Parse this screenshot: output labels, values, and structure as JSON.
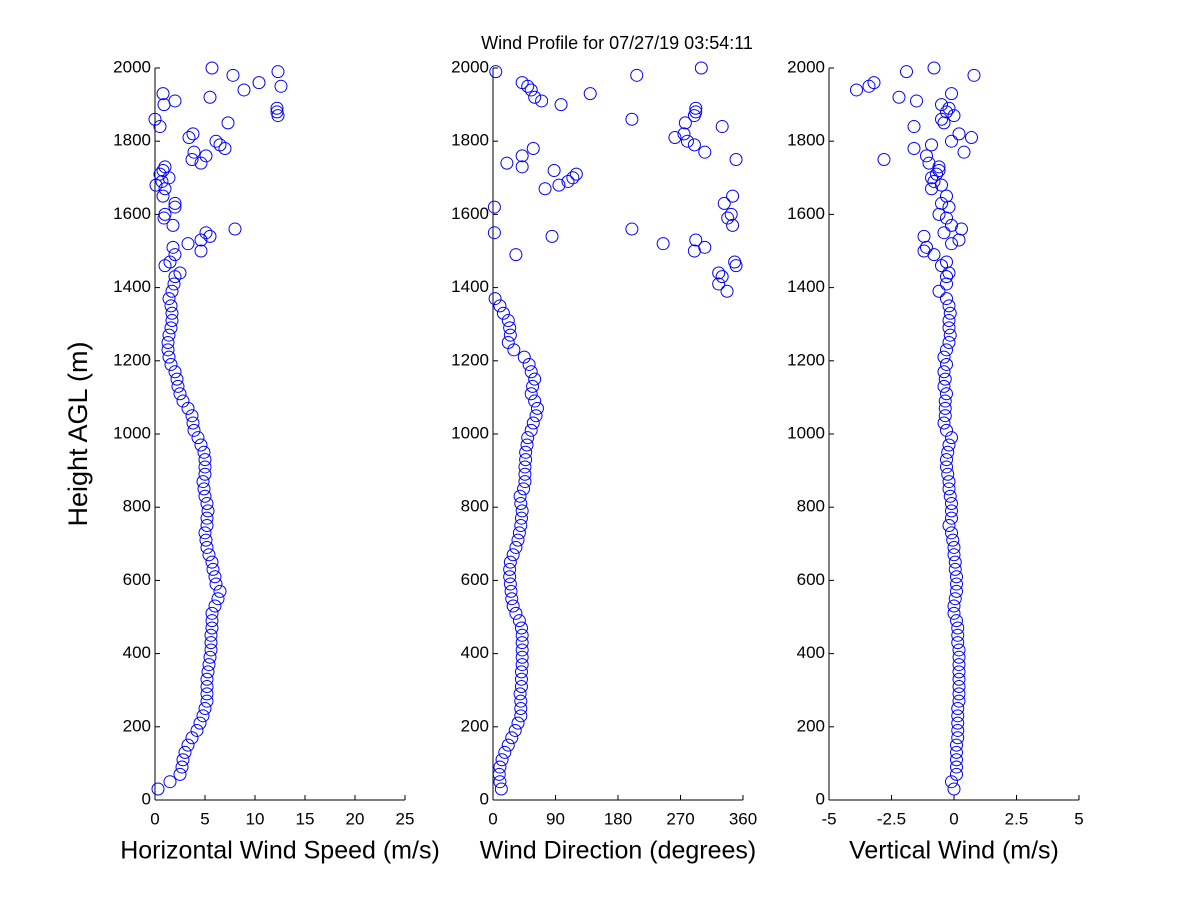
{
  "chart_data": [
    {
      "type": "scatter",
      "title": "Wind Profile for  07/27/19 03:54:11",
      "ylabel": "Height AGL (m)",
      "xlabel": "Horizontal Wind Speed (m/s)",
      "color": "#0000ff",
      "xlim": [
        0,
        25
      ],
      "xticks": [
        0,
        5,
        10,
        15,
        20,
        25
      ],
      "ylim": [
        0,
        2000
      ],
      "yticks": [
        0,
        200,
        400,
        600,
        800,
        1000,
        1200,
        1400,
        1600,
        1800,
        2000
      ],
      "x": [
        0.3,
        1.5,
        2.5,
        2.7,
        2.8,
        3.0,
        3.3,
        3.7,
        4.2,
        4.5,
        4.8,
        5.0,
        5.2,
        5.2,
        5.2,
        5.2,
        5.3,
        5.4,
        5.5,
        5.6,
        5.6,
        5.6,
        5.7,
        5.7,
        5.7,
        6.0,
        6.3,
        6.5,
        6.1,
        6.0,
        5.8,
        5.7,
        5.4,
        5.2,
        5.1,
        5.0,
        5.2,
        5.2,
        5.3,
        5.2,
        5.0,
        4.9,
        4.8,
        5.0,
        5.0,
        5.0,
        4.9,
        4.6,
        4.3,
        3.9,
        3.8,
        3.7,
        3.3,
        2.8,
        2.5,
        2.3,
        2.2,
        2.0,
        1.6,
        1.4,
        1.3,
        1.3,
        1.4,
        1.6,
        1.7,
        1.7,
        1.6,
        1.4,
        1.7,
        1.9,
        2.0,
        2.5,
        1.0,
        1.5,
        2.0,
        4.6,
        1.8,
        3.3,
        4.6,
        5.5,
        5.1,
        8.0,
        1.8,
        0.9,
        1.0,
        2.0,
        2.0,
        0.8,
        1.0,
        0.1,
        0.7,
        1.4,
        0.5,
        0.8,
        1.0,
        4.6,
        3.7,
        5.1,
        3.9,
        7.0,
        6.5,
        6.1,
        3.4,
        3.8,
        0.5,
        7.3,
        0.0,
        12.3,
        12.2,
        12.2,
        0.9,
        2.0,
        5.5,
        0.8,
        8.9,
        12.6,
        10.4,
        7.8,
        12.3,
        5.7
      ],
      "values": [
        30,
        50,
        70,
        90,
        110,
        130,
        150,
        170,
        190,
        210,
        230,
        250,
        270,
        290,
        310,
        330,
        350,
        370,
        390,
        410,
        430,
        450,
        470,
        490,
        510,
        530,
        550,
        570,
        590,
        610,
        630,
        650,
        670,
        690,
        710,
        730,
        750,
        770,
        790,
        810,
        830,
        850,
        870,
        890,
        910,
        930,
        950,
        970,
        990,
        1010,
        1030,
        1050,
        1070,
        1090,
        1110,
        1130,
        1150,
        1170,
        1190,
        1210,
        1230,
        1250,
        1270,
        1290,
        1310,
        1330,
        1350,
        1370,
        1390,
        1410,
        1430,
        1440,
        1460,
        1470,
        1490,
        1500,
        1510,
        1520,
        1530,
        1540,
        1550,
        1560,
        1570,
        1590,
        1600,
        1620,
        1630,
        1650,
        1670,
        1680,
        1690,
        1700,
        1710,
        1720,
        1730,
        1740,
        1750,
        1760,
        1770,
        1780,
        1790,
        1800,
        1810,
        1820,
        1840,
        1850,
        1860,
        1870,
        1880,
        1890,
        1900,
        1910,
        1920,
        1930,
        1940,
        1950,
        1960,
        1980,
        1990,
        2000
      ]
    },
    {
      "type": "scatter",
      "xlabel": "Wind Direction (degrees)",
      "color": "#0000ff",
      "xlim": [
        0,
        360
      ],
      "xticks": [
        0,
        90,
        180,
        270,
        360
      ],
      "ylim": [
        0,
        2000
      ],
      "yticks": [
        0,
        200,
        400,
        600,
        800,
        1000,
        1200,
        1400,
        1600,
        1800,
        2000
      ],
      "x": [
        12,
        10,
        9,
        10,
        13,
        17,
        22,
        27,
        32,
        36,
        40,
        40,
        40,
        39,
        41,
        41,
        41,
        42,
        42,
        42,
        42,
        42,
        41,
        38,
        33,
        29,
        27,
        26,
        25,
        24,
        24,
        25,
        29,
        33,
        36,
        38,
        40,
        41,
        42,
        40,
        39,
        44,
        46,
        46,
        46,
        47,
        47,
        49,
        50,
        55,
        58,
        62,
        64,
        60,
        55,
        57,
        60,
        55,
        52,
        45,
        30,
        22,
        25,
        24,
        22,
        15,
        10,
        3,
        337,
        325,
        330,
        325,
        350,
        348,
        33,
        290,
        305,
        245,
        292,
        85,
        2,
        200,
        345,
        338,
        343,
        2,
        333,
        345,
        75,
        95,
        108,
        115,
        120,
        88,
        42,
        20,
        350,
        42,
        305,
        58,
        290,
        280,
        262,
        275,
        330,
        277,
        200,
        290,
        292,
        292,
        98,
        70,
        60,
        140,
        55,
        50,
        42,
        207,
        4,
        300
      ],
      "values": [
        30,
        50,
        70,
        90,
        110,
        130,
        150,
        170,
        190,
        210,
        230,
        250,
        270,
        290,
        310,
        330,
        350,
        370,
        390,
        410,
        430,
        450,
        470,
        490,
        510,
        530,
        550,
        570,
        590,
        610,
        630,
        650,
        670,
        690,
        710,
        730,
        750,
        770,
        790,
        810,
        830,
        850,
        870,
        890,
        910,
        930,
        950,
        970,
        990,
        1010,
        1030,
        1050,
        1070,
        1090,
        1110,
        1130,
        1150,
        1170,
        1190,
        1210,
        1230,
        1250,
        1270,
        1290,
        1310,
        1330,
        1350,
        1370,
        1390,
        1410,
        1430,
        1440,
        1460,
        1470,
        1490,
        1500,
        1510,
        1520,
        1530,
        1540,
        1550,
        1560,
        1570,
        1590,
        1600,
        1620,
        1630,
        1650,
        1670,
        1680,
        1690,
        1700,
        1710,
        1720,
        1730,
        1740,
        1750,
        1760,
        1770,
        1780,
        1790,
        1800,
        1810,
        1820,
        1840,
        1850,
        1860,
        1870,
        1880,
        1890,
        1900,
        1910,
        1920,
        1930,
        1940,
        1950,
        1960,
        1980,
        1990,
        2000
      ]
    },
    {
      "type": "scatter",
      "xlabel": "Vertical Wind (m/s)",
      "color": "#0000ff",
      "xlim": [
        -5,
        5
      ],
      "xticks": [
        -5,
        -2.5,
        0,
        2.5,
        5
      ],
      "ylim": [
        0,
        2000
      ],
      "yticks": [
        0,
        200,
        400,
        600,
        800,
        1000,
        1200,
        1400,
        1600,
        1800,
        2000
      ],
      "x": [
        0,
        -0.1,
        0.1,
        0.1,
        0.1,
        0.1,
        0.1,
        0.15,
        0.15,
        0.15,
        0.15,
        0.15,
        0.2,
        0.2,
        0.2,
        0.2,
        0.2,
        0.2,
        0.2,
        0.2,
        0.15,
        0.15,
        0.15,
        0.1,
        0,
        0,
        0.05,
        0.1,
        0.1,
        0.1,
        0.05,
        0.05,
        0,
        0,
        -0.05,
        -0.1,
        -0.2,
        -0.1,
        -0.1,
        -0.1,
        -0.15,
        -0.2,
        -0.2,
        -0.25,
        -0.3,
        -0.3,
        -0.25,
        -0.2,
        -0.1,
        -0.3,
        -0.4,
        -0.35,
        -0.35,
        -0.35,
        -0.3,
        -0.4,
        -0.35,
        -0.4,
        -0.3,
        -0.4,
        -0.3,
        -0.2,
        -0.15,
        -0.2,
        -0.2,
        -0.15,
        -0.2,
        -0.3,
        -0.6,
        -0.3,
        -0.3,
        -0.2,
        -0.5,
        -0.3,
        -0.8,
        -1.2,
        -1.1,
        -0.1,
        0.2,
        -1.2,
        -0.4,
        0.3,
        -0.1,
        -0.3,
        -0.6,
        -0.2,
        -0.5,
        -0.3,
        -0.9,
        -0.5,
        -0.8,
        -0.9,
        -0.7,
        -0.6,
        -0.6,
        -1.0,
        -2.8,
        -1.1,
        0.4,
        -1.6,
        -0.9,
        -0.1,
        0.7,
        0.2,
        -1.6,
        -0.4,
        -0.5,
        0.0,
        -0.3,
        -0.2,
        -0.5,
        -1.5,
        -2.2,
        -0.1,
        -3.9,
        -3.4,
        -3.2,
        0.8,
        -1.9,
        -0.8
      ],
      "values": [
        30,
        50,
        70,
        90,
        110,
        130,
        150,
        170,
        190,
        210,
        230,
        250,
        270,
        290,
        310,
        330,
        350,
        370,
        390,
        410,
        430,
        450,
        470,
        490,
        510,
        530,
        550,
        570,
        590,
        610,
        630,
        650,
        670,
        690,
        710,
        730,
        750,
        770,
        790,
        810,
        830,
        850,
        870,
        890,
        910,
        930,
        950,
        970,
        990,
        1010,
        1030,
        1050,
        1070,
        1090,
        1110,
        1130,
        1150,
        1170,
        1190,
        1210,
        1230,
        1250,
        1270,
        1290,
        1310,
        1330,
        1350,
        1370,
        1390,
        1410,
        1430,
        1440,
        1460,
        1470,
        1490,
        1500,
        1510,
        1520,
        1530,
        1540,
        1550,
        1560,
        1570,
        1590,
        1600,
        1620,
        1630,
        1650,
        1670,
        1680,
        1690,
        1700,
        1710,
        1720,
        1730,
        1740,
        1750,
        1760,
        1770,
        1780,
        1790,
        1800,
        1810,
        1820,
        1840,
        1850,
        1860,
        1870,
        1880,
        1890,
        1900,
        1910,
        1920,
        1930,
        1940,
        1950,
        1960,
        1980,
        1990,
        2000
      ]
    }
  ]
}
